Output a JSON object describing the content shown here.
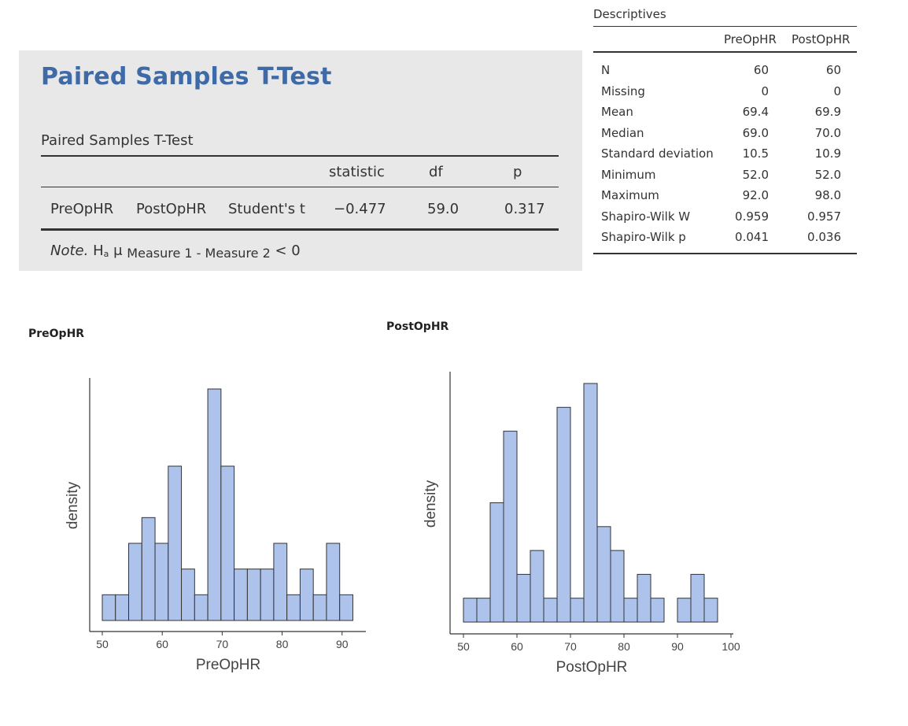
{
  "ttest": {
    "title": "Paired Samples T-Test",
    "table_title": "Paired Samples T-Test",
    "headers": {
      "statistic": "statistic",
      "df": "df",
      "p": "p"
    },
    "row": {
      "measure1": "PreOpHR",
      "measure2": "PostOpHR",
      "test": "Student's t",
      "statistic": "−0.477",
      "df": "59.0",
      "p": "0.317"
    },
    "note_label": "Note.",
    "note_h": "H",
    "note_h_sub": "a",
    "note_mu": " μ",
    "note_sub": "Measure 1 - Measure 2",
    "note_tail": " < 0"
  },
  "descriptives": {
    "title": "Descriptives",
    "columns": [
      "PreOpHR",
      "PostOpHR"
    ],
    "rows": [
      {
        "label": "N",
        "values": [
          "60",
          "60"
        ]
      },
      {
        "label": "Missing",
        "values": [
          "0",
          "0"
        ]
      },
      {
        "label": "Mean",
        "values": [
          "69.4",
          "69.9"
        ]
      },
      {
        "label": "Median",
        "values": [
          "69.0",
          "70.0"
        ]
      },
      {
        "label": "Standard deviation",
        "values": [
          "10.5",
          "10.9"
        ]
      },
      {
        "label": "Minimum",
        "values": [
          "52.0",
          "52.0"
        ]
      },
      {
        "label": "Maximum",
        "values": [
          "92.0",
          "98.0"
        ]
      },
      {
        "label": "Shapiro-Wilk W",
        "values": [
          "0.959",
          "0.957"
        ]
      },
      {
        "label": "Shapiro-Wilk p",
        "values": [
          "0.041",
          "0.036"
        ]
      }
    ]
  },
  "plots": {
    "pre_title": "PreOpHR",
    "post_title": "PostOpHR"
  },
  "chart_data": [
    {
      "type": "bar",
      "title": "PreOpHR",
      "xlabel": "PreOpHR",
      "ylabel": "density",
      "xlim": [
        50,
        92
      ],
      "xticks": [
        "50",
        "60",
        "70",
        "80",
        "90"
      ],
      "bin_width": 2.2,
      "bin_start": 50,
      "counts": [
        1,
        1,
        3,
        4,
        3,
        6,
        2,
        1,
        9,
        6,
        2,
        2,
        2,
        3,
        1,
        2,
        1,
        3,
        1
      ],
      "fill_color": "#aec3ec",
      "stroke_color": "#333333",
      "grid": false
    },
    {
      "type": "bar",
      "title": "PostOpHR",
      "xlabel": "PostOpHR",
      "ylabel": "density",
      "xlim": [
        50,
        100
      ],
      "xticks": [
        "50",
        "60",
        "70",
        "80",
        "90",
        "100"
      ],
      "bin_width": 2.5,
      "bin_start": 50,
      "counts": [
        1,
        1,
        5,
        8,
        2,
        3,
        1,
        9,
        1,
        10,
        4,
        3,
        1,
        2,
        1,
        0,
        1,
        2,
        1
      ],
      "fill_color": "#aec3ec",
      "stroke_color": "#333333",
      "grid": false
    }
  ]
}
